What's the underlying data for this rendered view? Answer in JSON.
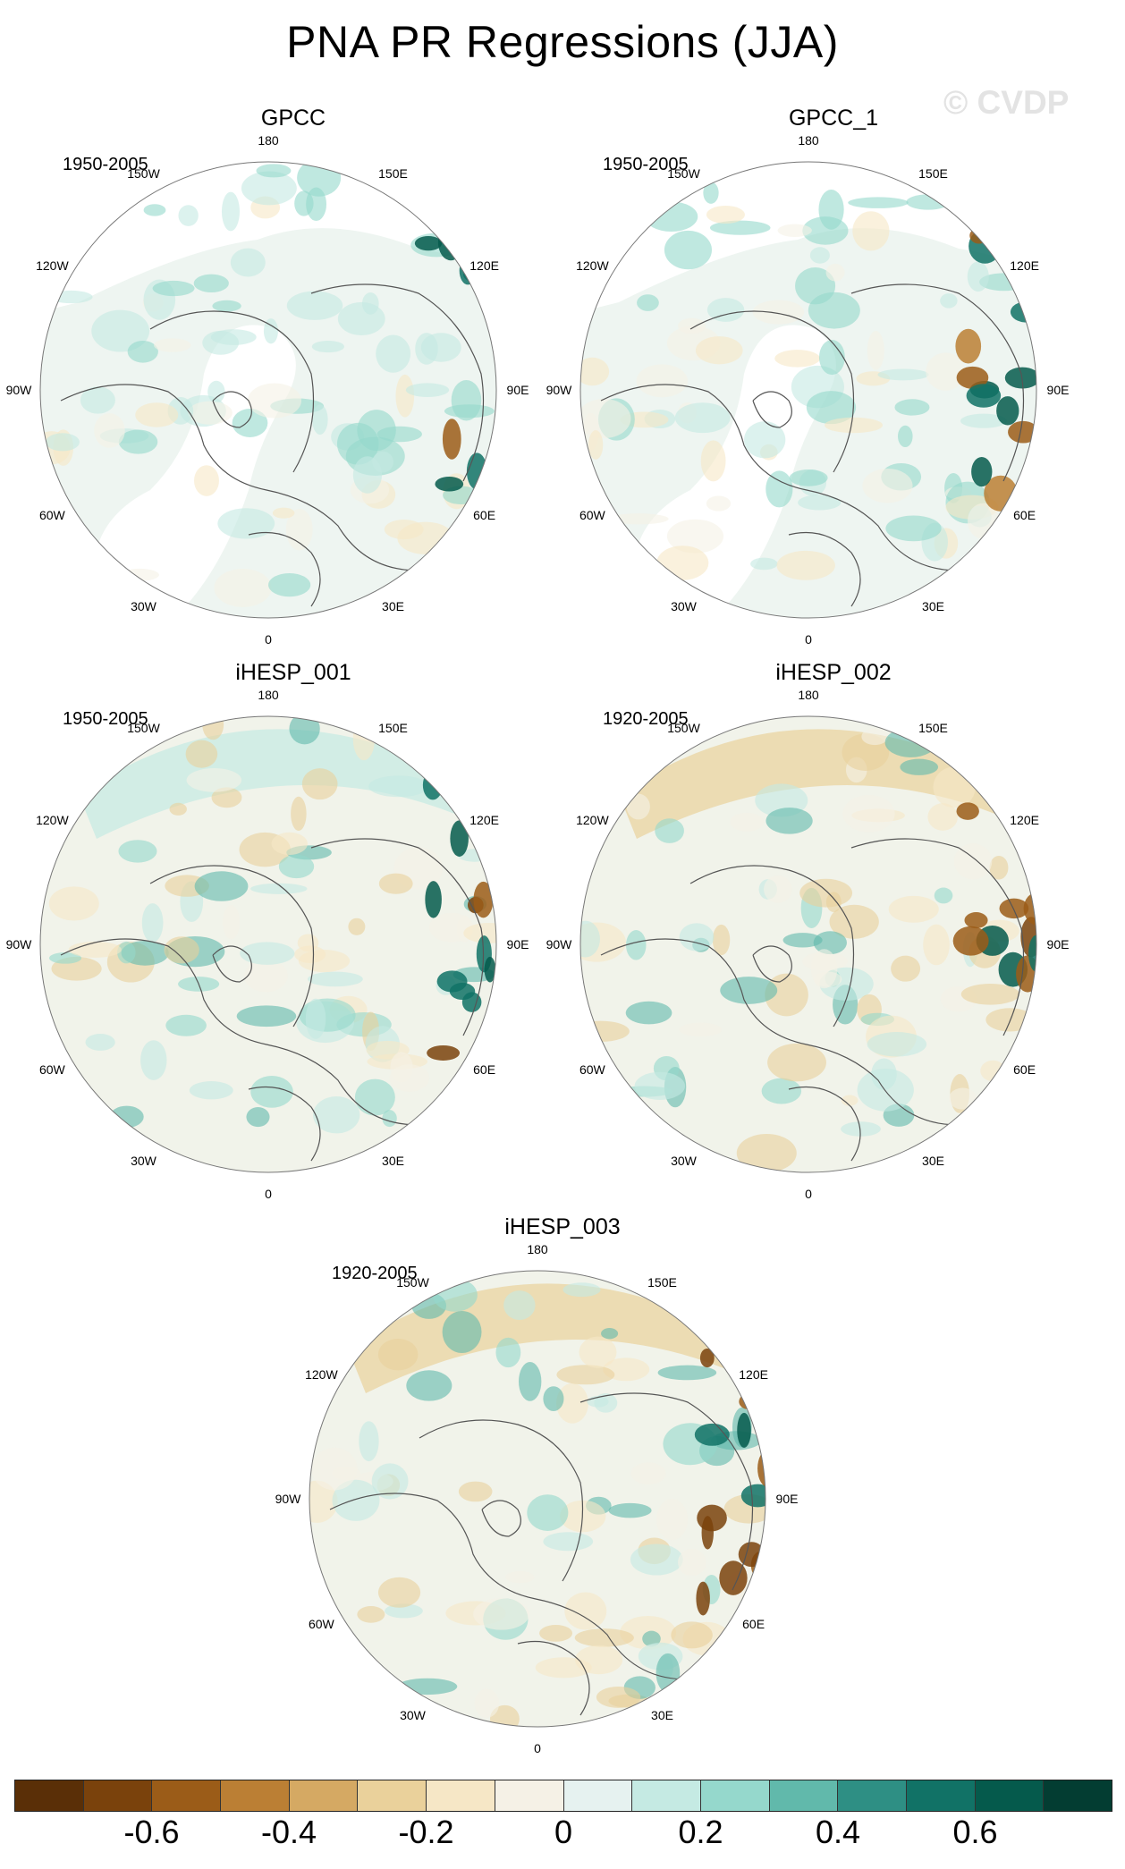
{
  "title": "PNA PR Regressions (JJA)",
  "watermark": "© CVDP",
  "panels": [
    {
      "name": "GPCC",
      "period": "1950-2005",
      "pattern": "obs"
    },
    {
      "name": "GPCC_1",
      "period": "1950-2005",
      "pattern": "obs"
    },
    {
      "name": "iHESP_001",
      "period": "1950-2005",
      "pattern": "model"
    },
    {
      "name": "iHESP_002",
      "period": "1920-2005",
      "pattern": "model"
    },
    {
      "name": "iHESP_003",
      "period": "1920-2005",
      "pattern": "model"
    }
  ],
  "longitude_labels": [
    "180",
    "150E",
    "120E",
    "90E",
    "60E",
    "30E",
    "0",
    "30W",
    "60W",
    "90W",
    "120W",
    "150W"
  ],
  "colorbar": {
    "colors": [
      "#5a2f07",
      "#7a420c",
      "#9b5c18",
      "#bb7f34",
      "#d5a963",
      "#ead19b",
      "#f6e7c6",
      "#f5f1e6",
      "#e6f2f0",
      "#c5eae3",
      "#95d8cc",
      "#61b9ab",
      "#2e8f84",
      "#117266",
      "#055a4c",
      "#033d32"
    ],
    "ticks": [
      {
        "label": "-0.6",
        "boundary": 2
      },
      {
        "label": "-0.4",
        "boundary": 4
      },
      {
        "label": "-0.2",
        "boundary": 6
      },
      {
        "label": "0",
        "boundary": 8
      },
      {
        "label": "0.2",
        "boundary": 10
      },
      {
        "label": "0.4",
        "boundary": 12
      },
      {
        "label": "0.6",
        "boundary": 14
      }
    ]
  }
}
